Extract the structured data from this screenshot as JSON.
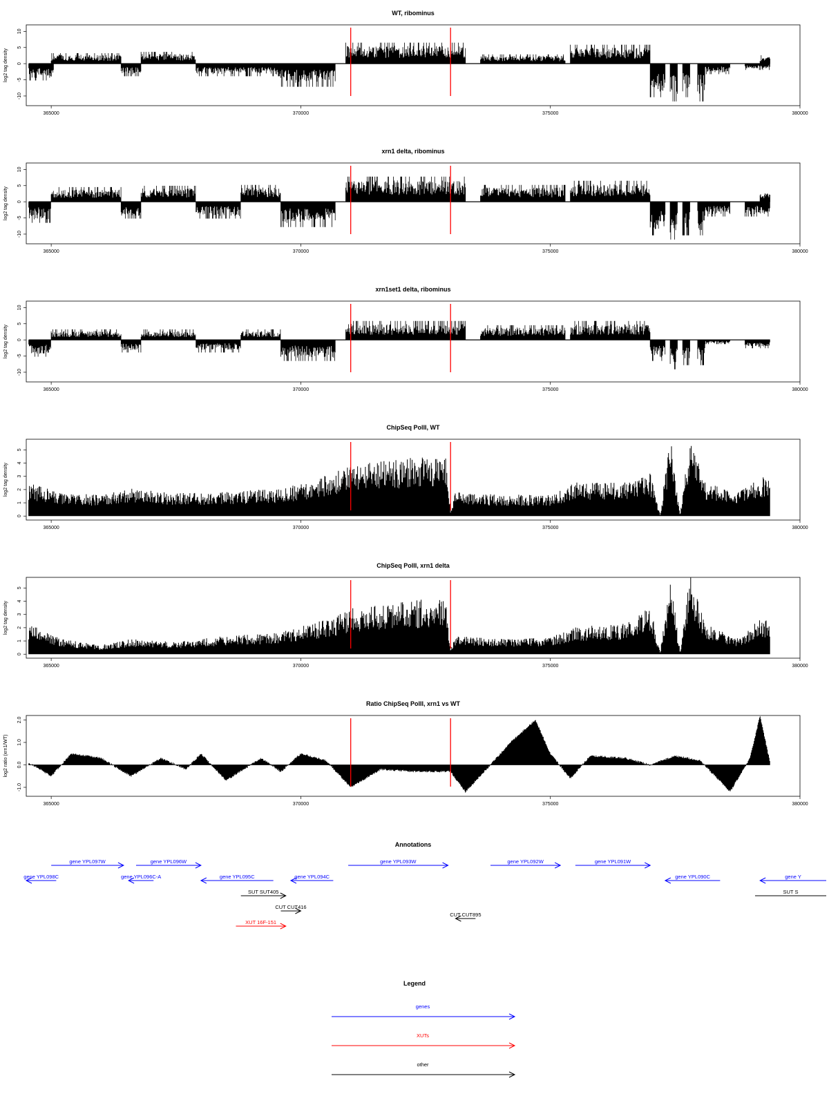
{
  "chart_data": [
    {
      "type": "bar",
      "title": "WT, ribominus",
      "ylabel": "log2 tag density",
      "xlim": [
        364500,
        380000
      ],
      "ylim": [
        -13,
        12
      ],
      "xticks": [
        "365000",
        "370000",
        "375000",
        "380000"
      ],
      "yticks": [
        "10",
        "5",
        "0",
        "-5",
        "-10"
      ],
      "ytick_values": [
        10,
        5,
        0,
        -5,
        -10
      ],
      "markers": [
        371000,
        373000
      ],
      "series": [
        {
          "values": [
            [
              364550,
              365050,
              -4
            ],
            [
              365000,
              366400,
              2.5
            ],
            [
              366400,
              366800,
              -3
            ],
            [
              366800,
              367900,
              2.8
            ],
            [
              367900,
              369600,
              -3
            ],
            [
              369600,
              370700,
              -5.5
            ],
            [
              370900,
              373300,
              5
            ],
            [
              373600,
              375300,
              2.2
            ],
            [
              375400,
              377000,
              4.5
            ],
            [
              377000,
              377300,
              -8
            ],
            [
              377400,
              377550,
              -9
            ],
            [
              377650,
              377800,
              -8
            ],
            [
              377950,
              378100,
              -9
            ],
            [
              378100,
              378600,
              -2.5
            ],
            [
              378900,
              379400,
              -1.5
            ],
            [
              379200,
              379400,
              2
            ]
          ]
        }
      ]
    },
    {
      "type": "bar",
      "title": "xrn1 delta, ribominus",
      "ylabel": "log2 tag density",
      "xlim": [
        364500,
        380000
      ],
      "ylim": [
        -13,
        12
      ],
      "xticks": [
        "365000",
        "370000",
        "375000",
        "380000"
      ],
      "yticks": [
        "10",
        "5",
        "0",
        "-5",
        "-10"
      ],
      "ytick_values": [
        10,
        5,
        0,
        -5,
        -10
      ],
      "markers": [
        371000,
        373000
      ],
      "series": [
        {
          "values": [
            [
              364550,
              365000,
              -5
            ],
            [
              365000,
              366400,
              3.5
            ],
            [
              366400,
              366800,
              -4
            ],
            [
              366800,
              367900,
              3.8
            ],
            [
              367900,
              368800,
              -4
            ],
            [
              368800,
              369600,
              4
            ],
            [
              369600,
              370700,
              -6
            ],
            [
              370900,
              373300,
              6
            ],
            [
              373600,
              375300,
              4
            ],
            [
              375400,
              377000,
              5
            ],
            [
              377000,
              377300,
              -8
            ],
            [
              377400,
              377550,
              -9
            ],
            [
              377650,
              377800,
              -8
            ],
            [
              377950,
              378100,
              -8
            ],
            [
              378100,
              378600,
              -3.5
            ],
            [
              378900,
              379400,
              -3.5
            ],
            [
              379200,
              379400,
              3
            ]
          ]
        }
      ]
    },
    {
      "type": "bar",
      "title": "xrn1set1 delta, ribominus",
      "ylabel": "log2 tag density",
      "xlim": [
        364500,
        380000
      ],
      "ylim": [
        -13,
        12
      ],
      "xticks": [
        "365000",
        "370000",
        "375000",
        "380000"
      ],
      "yticks": [
        "10",
        "5",
        "0",
        "-5",
        "-10"
      ],
      "ytick_values": [
        10,
        5,
        0,
        -5,
        -10
      ],
      "markers": [
        371000,
        373000
      ],
      "series": [
        {
          "values": [
            [
              364550,
              365000,
              -4
            ],
            [
              365000,
              366400,
              2.5
            ],
            [
              366400,
              366800,
              -3
            ],
            [
              366800,
              367900,
              2.5
            ],
            [
              367900,
              368800,
              -3
            ],
            [
              368800,
              369600,
              2.5
            ],
            [
              369600,
              370700,
              -5
            ],
            [
              370900,
              373300,
              4.5
            ],
            [
              373600,
              375300,
              3.5
            ],
            [
              375400,
              377000,
              4.5
            ],
            [
              377000,
              377300,
              -5
            ],
            [
              377400,
              377550,
              -7
            ],
            [
              377650,
              377800,
              -6
            ],
            [
              377950,
              378100,
              -6
            ],
            [
              378100,
              378600,
              -1
            ],
            [
              378900,
              379400,
              -2
            ]
          ]
        }
      ]
    },
    {
      "type": "area",
      "title": "ChipSeq PolII, WT",
      "ylabel": "log2 tag density",
      "xlim": [
        364500,
        380000
      ],
      "ylim": [
        -0.3,
        5.8
      ],
      "xticks": [
        "365000",
        "370000",
        "375000",
        "380000"
      ],
      "yticks": [
        "5",
        "4",
        "3",
        "2",
        "1",
        "0"
      ],
      "ytick_values": [
        5,
        4,
        3,
        2,
        1,
        0
      ],
      "markers": [
        371000,
        373000
      ],
      "series": [
        {
          "values": [
            [
              364550,
              2.2
            ],
            [
              365200,
              1.5
            ],
            [
              366000,
              1.4
            ],
            [
              366600,
              1.8
            ],
            [
              367500,
              1.5
            ],
            [
              368500,
              1.6
            ],
            [
              369500,
              1.8
            ],
            [
              370200,
              2.2
            ],
            [
              370700,
              3.0
            ],
            [
              371000,
              3.4
            ],
            [
              372000,
              3.8
            ],
            [
              372900,
              4.2
            ],
            [
              373000,
              0.3
            ],
            [
              373100,
              1.6
            ],
            [
              374000,
              1.4
            ],
            [
              375000,
              1.4
            ],
            [
              375500,
              2.2
            ],
            [
              376500,
              2.3
            ],
            [
              377000,
              2.8
            ],
            [
              377200,
              0.1
            ],
            [
              377400,
              5.4
            ],
            [
              377600,
              0.1
            ],
            [
              377800,
              5.4
            ],
            [
              378100,
              2.2
            ],
            [
              378800,
              1.6
            ],
            [
              379200,
              2.6
            ],
            [
              379400,
              2.4
            ]
          ]
        }
      ]
    },
    {
      "type": "area",
      "title": "ChipSeq PolII, xrn1 delta",
      "ylabel": "log2 tag density",
      "xlim": [
        364500,
        380000
      ],
      "ylim": [
        -0.3,
        5.8
      ],
      "xticks": [
        "365000",
        "370000",
        "375000",
        "380000"
      ],
      "yticks": [
        "5",
        "4",
        "3",
        "2",
        "1",
        "0"
      ],
      "ytick_values": [
        5,
        4,
        3,
        2,
        1,
        0
      ],
      "markers": [
        371000,
        373000
      ],
      "series": [
        {
          "values": [
            [
              364550,
              2.0
            ],
            [
              365200,
              1.0
            ],
            [
              366000,
              0.6
            ],
            [
              366600,
              1.0
            ],
            [
              367500,
              0.8
            ],
            [
              368500,
              1.2
            ],
            [
              369500,
              1.4
            ],
            [
              370200,
              2.0
            ],
            [
              370700,
              2.5
            ],
            [
              371000,
              3.0
            ],
            [
              372000,
              3.4
            ],
            [
              372900,
              3.8
            ],
            [
              373000,
              0.3
            ],
            [
              373100,
              1.2
            ],
            [
              374000,
              1.0
            ],
            [
              375000,
              1.1
            ],
            [
              375500,
              1.8
            ],
            [
              376500,
              2.0
            ],
            [
              377000,
              3.2
            ],
            [
              377200,
              0.1
            ],
            [
              377400,
              5.3
            ],
            [
              377600,
              0.1
            ],
            [
              377800,
              5.4
            ],
            [
              378100,
              2.0
            ],
            [
              378800,
              1.0
            ],
            [
              379200,
              2.4
            ],
            [
              379400,
              2.2
            ]
          ]
        }
      ]
    },
    {
      "type": "area",
      "title": "Ratio ChipSeq PolII, xrn1 vs WT",
      "ylabel": "log2 ratio (xrn1/WT)",
      "xlim": [
        364500,
        380000
      ],
      "ylim": [
        -1.4,
        2.2
      ],
      "xticks": [
        "365000",
        "370000",
        "375000",
        "380000"
      ],
      "yticks": [
        "2.0",
        "1.0",
        "0.0",
        "-1.0"
      ],
      "ytick_values": [
        2.0,
        1.0,
        0.0,
        -1.0
      ],
      "markers": [
        371000,
        373000
      ],
      "series": [
        {
          "values": [
            [
              364550,
              0.1
            ],
            [
              365000,
              -0.5
            ],
            [
              365400,
              0.5
            ],
            [
              366000,
              0.3
            ],
            [
              366600,
              -0.5
            ],
            [
              367200,
              0.3
            ],
            [
              367700,
              -0.2
            ],
            [
              368000,
              0.5
            ],
            [
              368500,
              -0.7
            ],
            [
              369200,
              0.3
            ],
            [
              369600,
              -0.3
            ],
            [
              370000,
              0.5
            ],
            [
              370500,
              0.2
            ],
            [
              371000,
              -1.0
            ],
            [
              371600,
              -0.2
            ],
            [
              372300,
              -0.3
            ],
            [
              373000,
              -0.3
            ],
            [
              373300,
              -1.2
            ],
            [
              373800,
              0.0
            ],
            [
              374200,
              1.0
            ],
            [
              374700,
              2.0
            ],
            [
              375000,
              0.5
            ],
            [
              375400,
              -0.6
            ],
            [
              375800,
              0.4
            ],
            [
              376500,
              0.3
            ],
            [
              377000,
              0.0
            ],
            [
              377500,
              0.4
            ],
            [
              378000,
              0.2
            ],
            [
              378600,
              -1.2
            ],
            [
              379000,
              0.3
            ],
            [
              379200,
              2.2
            ],
            [
              379400,
              0.1
            ]
          ]
        }
      ]
    }
  ],
  "annotations": {
    "title": "Annotations",
    "features": [
      {
        "label": "gene YPL098C",
        "kind": "gene",
        "strand": "-",
        "start": 364500,
        "end": 365100,
        "row": 1
      },
      {
        "label": "gene YPL097W",
        "kind": "gene",
        "strand": "+",
        "start": 365000,
        "end": 366450,
        "row": 0
      },
      {
        "label": "gene YPL096C-A",
        "kind": "gene",
        "strand": "-",
        "start": 366550,
        "end": 367050,
        "row": 1
      },
      {
        "label": "gene YPL096W",
        "kind": "gene",
        "strand": "+",
        "start": 366700,
        "end": 368000,
        "row": 0
      },
      {
        "label": "gene YPL095C",
        "kind": "gene",
        "strand": "-",
        "start": 368000,
        "end": 369450,
        "row": 1
      },
      {
        "label": "gene YPL094C",
        "kind": "gene",
        "strand": "-",
        "start": 369800,
        "end": 370650,
        "row": 1
      },
      {
        "label": "gene YPL093W",
        "kind": "gene",
        "strand": "+",
        "start": 370950,
        "end": 372950,
        "row": 0
      },
      {
        "label": "gene YPL092W",
        "kind": "gene",
        "strand": "+",
        "start": 373800,
        "end": 375200,
        "row": 0
      },
      {
        "label": "gene YPL091W",
        "kind": "gene",
        "strand": "+",
        "start": 375500,
        "end": 377000,
        "row": 0
      },
      {
        "label": "gene YPL090C",
        "kind": "gene",
        "strand": "-",
        "start": 377300,
        "end": 378400,
        "row": 1
      },
      {
        "label": "gene Y",
        "kind": "gene",
        "strand": "-",
        "start": 379200,
        "end": 381000,
        "row": 1
      },
      {
        "label": "SUT SUT405",
        "kind": "other",
        "strand": "+",
        "start": 368800,
        "end": 369700,
        "row": 2
      },
      {
        "label": "CUT CUT416",
        "kind": "other",
        "strand": "+",
        "start": 369600,
        "end": 370000,
        "row": 3
      },
      {
        "label": "XUT 16F-151",
        "kind": "xut",
        "strand": "+",
        "start": 368700,
        "end": 369700,
        "row": 4
      },
      {
        "label": "CUT CUT895",
        "kind": "other",
        "strand": "-",
        "start": 373100,
        "end": 373500,
        "row": 3.5
      },
      {
        "label": "SUT S",
        "kind": "other",
        "strand": "none",
        "start": 379100,
        "end": 381000,
        "row": 2
      }
    ]
  },
  "legend": {
    "title": "Legend",
    "items": [
      {
        "label": "genes",
        "color": "#0000ff"
      },
      {
        "label": "XUTs",
        "color": "#ff0000"
      },
      {
        "label": "other",
        "color": "#000000"
      }
    ]
  },
  "colors": {
    "gene": "#0000ff",
    "xut": "#ff0000",
    "other": "#000000",
    "marker": "#ff0000",
    "data": "#000000"
  }
}
